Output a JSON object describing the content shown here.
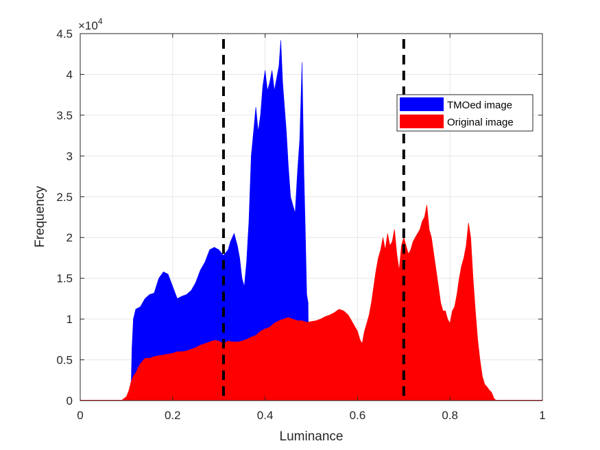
{
  "chart_data": {
    "type": "bar",
    "xlabel": "Luminance",
    "ylabel": "Frequency",
    "y_exponent_label": "×10",
    "y_exponent_power": "4",
    "xlim": [
      0,
      1
    ],
    "ylim": [
      0,
      45000
    ],
    "x_ticks": [
      0,
      0.2,
      0.4,
      0.6,
      0.8,
      1
    ],
    "x_tick_labels": [
      "0",
      "0.2",
      "0.4",
      "0.6",
      "0.8",
      "1"
    ],
    "y_ticks": [
      0,
      5000,
      10000,
      15000,
      20000,
      25000,
      30000,
      35000,
      40000,
      45000
    ],
    "y_tick_labels": [
      "0",
      "0.5",
      "1",
      "1.5",
      "2",
      "2.5",
      "3",
      "3.5",
      "4",
      "4.5"
    ],
    "grid": true,
    "legend_position": "upper-right",
    "series": [
      {
        "name": "TMOed image",
        "color": "#0000ff",
        "points": [
          [
            0.105,
            100
          ],
          [
            0.11,
            1200
          ],
          [
            0.112,
            6500
          ],
          [
            0.115,
            10000
          ],
          [
            0.12,
            11200
          ],
          [
            0.13,
            11500
          ],
          [
            0.14,
            12500
          ],
          [
            0.15,
            13000
          ],
          [
            0.16,
            13200
          ],
          [
            0.17,
            15000
          ],
          [
            0.18,
            15800
          ],
          [
            0.19,
            15500
          ],
          [
            0.2,
            14000
          ],
          [
            0.21,
            12500
          ],
          [
            0.22,
            12800
          ],
          [
            0.23,
            13000
          ],
          [
            0.24,
            13500
          ],
          [
            0.25,
            14500
          ],
          [
            0.26,
            16000
          ],
          [
            0.27,
            17000
          ],
          [
            0.28,
            18500
          ],
          [
            0.29,
            18800
          ],
          [
            0.3,
            18500
          ],
          [
            0.31,
            17800
          ],
          [
            0.32,
            18500
          ],
          [
            0.325,
            19500
          ],
          [
            0.333,
            20500
          ],
          [
            0.34,
            19000
          ],
          [
            0.345,
            17500
          ],
          [
            0.35,
            15000
          ],
          [
            0.355,
            14000
          ],
          [
            0.36,
            17000
          ],
          [
            0.365,
            22000
          ],
          [
            0.37,
            30000
          ],
          [
            0.375,
            33000
          ],
          [
            0.38,
            36000
          ],
          [
            0.385,
            33000
          ],
          [
            0.39,
            35000
          ],
          [
            0.395,
            38500
          ],
          [
            0.4,
            40500
          ],
          [
            0.405,
            38000
          ],
          [
            0.41,
            39000
          ],
          [
            0.415,
            40500
          ],
          [
            0.42,
            38000
          ],
          [
            0.425,
            39500
          ],
          [
            0.43,
            41000
          ],
          [
            0.434,
            44200
          ],
          [
            0.438,
            39000
          ],
          [
            0.442,
            36000
          ],
          [
            0.446,
            33000
          ],
          [
            0.45,
            29000
          ],
          [
            0.455,
            25000
          ],
          [
            0.46,
            24000
          ],
          [
            0.465,
            23000
          ],
          [
            0.47,
            28000
          ],
          [
            0.475,
            32000
          ],
          [
            0.48,
            41500
          ],
          [
            0.484,
            28000
          ],
          [
            0.487,
            21000
          ],
          [
            0.49,
            13000
          ],
          [
            0.493,
            12000
          ],
          [
            0.495,
            0
          ]
        ]
      },
      {
        "name": "Original image",
        "color": "#ff0000",
        "points": [
          [
            0.09,
            50
          ],
          [
            0.1,
            500
          ],
          [
            0.105,
            1200
          ],
          [
            0.11,
            2300
          ],
          [
            0.115,
            3000
          ],
          [
            0.12,
            3400
          ],
          [
            0.125,
            4000
          ],
          [
            0.13,
            4500
          ],
          [
            0.14,
            5200
          ],
          [
            0.15,
            5200
          ],
          [
            0.16,
            5400
          ],
          [
            0.17,
            5500
          ],
          [
            0.18,
            5600
          ],
          [
            0.19,
            5700
          ],
          [
            0.2,
            5800
          ],
          [
            0.21,
            6000
          ],
          [
            0.22,
            6000
          ],
          [
            0.23,
            6100
          ],
          [
            0.24,
            6300
          ],
          [
            0.25,
            6500
          ],
          [
            0.26,
            6800
          ],
          [
            0.27,
            7000
          ],
          [
            0.28,
            7200
          ],
          [
            0.29,
            7400
          ],
          [
            0.3,
            7300
          ],
          [
            0.31,
            7000
          ],
          [
            0.32,
            7300
          ],
          [
            0.33,
            7200
          ],
          [
            0.34,
            7200
          ],
          [
            0.35,
            7300
          ],
          [
            0.36,
            7500
          ],
          [
            0.37,
            7800
          ],
          [
            0.38,
            8000
          ],
          [
            0.39,
            8500
          ],
          [
            0.4,
            8800
          ],
          [
            0.41,
            9000
          ],
          [
            0.42,
            9500
          ],
          [
            0.43,
            9800
          ],
          [
            0.44,
            10000
          ],
          [
            0.45,
            10200
          ],
          [
            0.46,
            10000
          ],
          [
            0.47,
            9800
          ],
          [
            0.48,
            9800
          ],
          [
            0.49,
            9600
          ],
          [
            0.5,
            9700
          ],
          [
            0.51,
            9800
          ],
          [
            0.52,
            10000
          ],
          [
            0.53,
            10300
          ],
          [
            0.54,
            10500
          ],
          [
            0.55,
            10800
          ],
          [
            0.56,
            11200
          ],
          [
            0.57,
            11000
          ],
          [
            0.58,
            10500
          ],
          [
            0.59,
            9500
          ],
          [
            0.6,
            8500
          ],
          [
            0.605,
            7500
          ],
          [
            0.61,
            7000
          ],
          [
            0.615,
            8500
          ],
          [
            0.62,
            9500
          ],
          [
            0.625,
            10500
          ],
          [
            0.63,
            12000
          ],
          [
            0.635,
            14000
          ],
          [
            0.64,
            16000
          ],
          [
            0.645,
            17500
          ],
          [
            0.65,
            18500
          ],
          [
            0.655,
            20000
          ],
          [
            0.66,
            18500
          ],
          [
            0.665,
            20500
          ],
          [
            0.67,
            19000
          ],
          [
            0.675,
            19500
          ],
          [
            0.68,
            21000
          ],
          [
            0.685,
            18000
          ],
          [
            0.69,
            16000
          ],
          [
            0.695,
            19000
          ],
          [
            0.7,
            20000
          ],
          [
            0.705,
            19000
          ],
          [
            0.71,
            18000
          ],
          [
            0.715,
            18500
          ],
          [
            0.72,
            19500
          ],
          [
            0.725,
            20000
          ],
          [
            0.73,
            20500
          ],
          [
            0.735,
            21000
          ],
          [
            0.74,
            22000
          ],
          [
            0.745,
            22500
          ],
          [
            0.75,
            24000
          ],
          [
            0.755,
            21000
          ],
          [
            0.76,
            20000
          ],
          [
            0.765,
            18000
          ],
          [
            0.77,
            16000
          ],
          [
            0.775,
            14000
          ],
          [
            0.78,
            12000
          ],
          [
            0.785,
            11000
          ],
          [
            0.79,
            11000
          ],
          [
            0.795,
            10000
          ],
          [
            0.8,
            9500
          ],
          [
            0.805,
            11000
          ],
          [
            0.81,
            11500
          ],
          [
            0.815,
            13000
          ],
          [
            0.82,
            15000
          ],
          [
            0.825,
            16500
          ],
          [
            0.83,
            17500
          ],
          [
            0.835,
            19000
          ],
          [
            0.84,
            21800
          ],
          [
            0.845,
            20000
          ],
          [
            0.85,
            15000
          ],
          [
            0.855,
            11000
          ],
          [
            0.86,
            7500
          ],
          [
            0.865,
            5000
          ],
          [
            0.87,
            3000
          ],
          [
            0.875,
            2000
          ],
          [
            0.88,
            1700
          ],
          [
            0.885,
            1300
          ],
          [
            0.89,
            1000
          ],
          [
            0.895,
            300
          ],
          [
            0.9,
            0
          ]
        ]
      }
    ],
    "reference_lines": [
      {
        "x": 0.31,
        "style": "dashed",
        "color": "#000000"
      },
      {
        "x": 0.7,
        "style": "dashed",
        "color": "#000000"
      }
    ]
  }
}
